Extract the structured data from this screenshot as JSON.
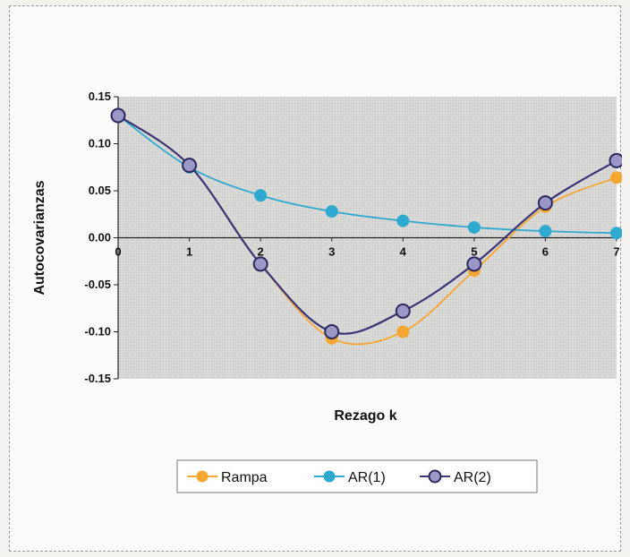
{
  "chart_data": {
    "type": "line",
    "title": "",
    "xlabel": "Rezago k",
    "ylabel": "Autocovarianzas",
    "x": [
      0,
      1,
      2,
      3,
      4,
      5,
      6,
      7
    ],
    "x_tick_labels": [
      "0",
      "1",
      "2",
      "3",
      "4",
      "5",
      "6",
      "7"
    ],
    "ylim": [
      -0.15,
      0.15
    ],
    "y_ticks": [
      0.15,
      0.1,
      0.05,
      0.0,
      -0.05,
      -0.1,
      -0.15
    ],
    "y_tick_labels": [
      "0.15",
      "0.10",
      "0.05",
      "0.00",
      "-0.05",
      "-0.10",
      "-0.15"
    ],
    "grid": false,
    "smooth": true,
    "legend_position": "bottom",
    "series": [
      {
        "name": "Rampa",
        "color": "#f5a733",
        "values": [
          0.13,
          0.077,
          -0.028,
          -0.107,
          -0.1,
          -0.035,
          0.033,
          0.064
        ]
      },
      {
        "name": "AR(1)",
        "color": "#2fa9cf",
        "values": [
          0.13,
          0.075,
          0.045,
          0.028,
          0.018,
          0.011,
          0.007,
          0.005
        ]
      },
      {
        "name": "AR(2)",
        "color": "#3a3578",
        "values": [
          0.13,
          0.077,
          -0.028,
          -0.1,
          -0.078,
          -0.028,
          0.037,
          0.082
        ]
      }
    ]
  }
}
